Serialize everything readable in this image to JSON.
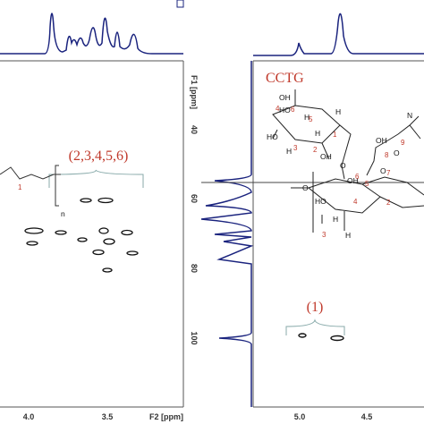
{
  "left_panel": {
    "y_axis_title": "F1 [ppm]",
    "y_ticks": [
      "40",
      "60",
      "80",
      "100"
    ],
    "x_ticks": [
      "4.0",
      "3.5"
    ],
    "x_axis_title": "F2 [ppm]",
    "peak_label": "(2,3,4,5,6)",
    "fragment_labels": [
      "1",
      "n"
    ]
  },
  "right_panel": {
    "title": "CCTG",
    "peak_label": "(1)",
    "x_ticks": [
      "5.0",
      "4.5"
    ],
    "molecule_atoms": [
      "OH",
      "HO",
      "H",
      "HO",
      "H",
      "OH",
      "H",
      "H",
      "OH",
      "O",
      "O",
      "HO",
      "H",
      "H",
      "O",
      "OH",
      "N",
      "O"
    ],
    "molecule_numbers": [
      "4",
      "5",
      "6",
      "3",
      "2",
      "1",
      "6",
      "5",
      "7",
      "8",
      "9",
      "4",
      "3",
      "2"
    ]
  }
}
